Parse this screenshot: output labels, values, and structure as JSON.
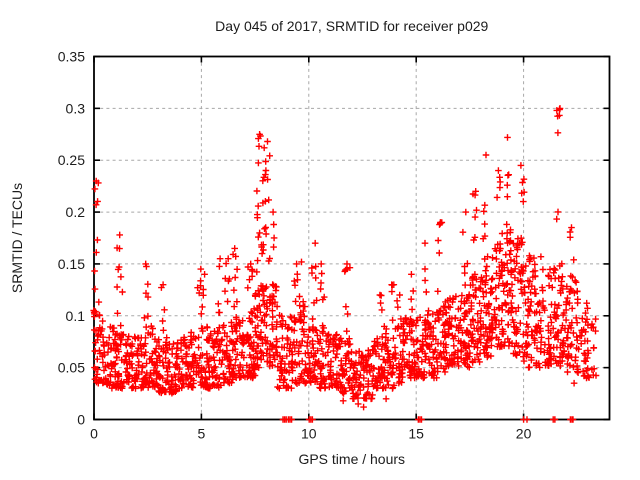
{
  "chart_data": {
    "type": "scatter",
    "title": "Day 045 of 2017, SRMTID for receiver p029",
    "xlabel": "GPS time / hours",
    "ylabel": "SRMTID / TECUs",
    "xlim": [
      0,
      24
    ],
    "ylim": [
      0,
      0.35
    ],
    "grid": true,
    "legend": "none",
    "marker": {
      "shape": "plus",
      "color": "#ff0000",
      "size": 7
    },
    "grid_color": "#a8a8a8",
    "border_color": "#000000",
    "xticks": [
      0,
      5,
      10,
      15,
      20
    ],
    "xtick_labels": [
      "0",
      "5",
      "10",
      "15",
      "20"
    ],
    "yticks": [
      0,
      0.05,
      0.1,
      0.15,
      0.2,
      0.25,
      0.3,
      0.35
    ],
    "ytick_labels": [
      "0",
      "0.05",
      "0.1",
      "0.15",
      "0.2",
      "0.25",
      "0.3",
      "0.35"
    ],
    "data_x_range": [
      0.05,
      23.3
    ],
    "data_y_max": 0.3,
    "bands": [
      [
        0.0,
        46,
        0.035,
        0.105
      ],
      [
        0.5,
        40,
        0.03,
        0.09
      ],
      [
        1.0,
        40,
        0.03,
        0.085
      ],
      [
        1.5,
        42,
        0.03,
        0.08
      ],
      [
        2.0,
        40,
        0.03,
        0.08
      ],
      [
        2.5,
        42,
        0.03,
        0.09
      ],
      [
        3.0,
        40,
        0.025,
        0.08
      ],
      [
        3.5,
        40,
        0.025,
        0.075
      ],
      [
        4.0,
        40,
        0.03,
        0.08
      ],
      [
        4.5,
        40,
        0.03,
        0.085
      ],
      [
        5.0,
        42,
        0.03,
        0.09
      ],
      [
        5.5,
        40,
        0.03,
        0.085
      ],
      [
        6.0,
        42,
        0.035,
        0.095
      ],
      [
        6.5,
        42,
        0.04,
        0.1
      ],
      [
        7.0,
        45,
        0.04,
        0.11
      ],
      [
        7.5,
        48,
        0.05,
        0.13
      ],
      [
        8.0,
        45,
        0.05,
        0.13
      ],
      [
        8.5,
        40,
        0.03,
        0.11
      ],
      [
        9.0,
        38,
        0.03,
        0.1
      ],
      [
        9.5,
        40,
        0.035,
        0.11
      ],
      [
        10.0,
        42,
        0.035,
        0.1
      ],
      [
        10.5,
        40,
        0.03,
        0.09
      ],
      [
        11.0,
        42,
        0.03,
        0.085
      ],
      [
        11.5,
        40,
        0.025,
        0.08
      ],
      [
        12.0,
        38,
        0.02,
        0.07
      ],
      [
        12.5,
        38,
        0.02,
        0.07
      ],
      [
        13.0,
        40,
        0.03,
        0.08
      ],
      [
        13.5,
        40,
        0.03,
        0.09
      ],
      [
        14.0,
        42,
        0.035,
        0.095
      ],
      [
        14.5,
        42,
        0.04,
        0.1
      ],
      [
        15.0,
        42,
        0.04,
        0.1
      ],
      [
        15.5,
        42,
        0.04,
        0.105
      ],
      [
        16.0,
        44,
        0.045,
        0.115
      ],
      [
        16.5,
        44,
        0.05,
        0.12
      ],
      [
        17.0,
        46,
        0.05,
        0.13
      ],
      [
        17.5,
        46,
        0.055,
        0.14
      ],
      [
        18.0,
        48,
        0.06,
        0.15
      ],
      [
        18.5,
        50,
        0.07,
        0.17
      ],
      [
        19.0,
        50,
        0.07,
        0.19
      ],
      [
        19.5,
        48,
        0.06,
        0.18
      ],
      [
        20.0,
        46,
        0.05,
        0.16
      ],
      [
        20.5,
        46,
        0.05,
        0.16
      ],
      [
        21.0,
        44,
        0.05,
        0.15
      ],
      [
        21.5,
        44,
        0.05,
        0.16
      ],
      [
        22.0,
        42,
        0.045,
        0.14
      ],
      [
        22.5,
        34,
        0.04,
        0.125
      ],
      [
        23.0,
        14,
        0.04,
        0.1
      ]
    ],
    "spikes": [
      [
        0.1,
        12,
        0.1,
        0.23
      ],
      [
        1.2,
        11,
        0.08,
        0.178
      ],
      [
        2.45,
        8,
        0.08,
        0.15
      ],
      [
        3.2,
        5,
        0.08,
        0.13
      ],
      [
        4.95,
        7,
        0.085,
        0.145
      ],
      [
        5.1,
        5,
        0.08,
        0.14
      ],
      [
        5.85,
        7,
        0.085,
        0.155
      ],
      [
        6.2,
        7,
        0.09,
        0.155
      ],
      [
        6.6,
        8,
        0.095,
        0.165
      ],
      [
        7.25,
        7,
        0.1,
        0.15
      ],
      [
        7.7,
        16,
        0.12,
        0.275
      ],
      [
        7.9,
        13,
        0.11,
        0.262
      ],
      [
        8.1,
        12,
        0.11,
        0.268
      ],
      [
        8.3,
        8,
        0.1,
        0.2
      ],
      [
        9.4,
        6,
        0.09,
        0.15
      ],
      [
        9.65,
        6,
        0.09,
        0.152
      ],
      [
        10.25,
        8,
        0.09,
        0.17
      ],
      [
        10.6,
        7,
        0.08,
        0.15
      ],
      [
        11.8,
        8,
        0.07,
        0.15
      ],
      [
        13.3,
        5,
        0.07,
        0.12
      ],
      [
        13.9,
        5,
        0.08,
        0.13
      ],
      [
        14.2,
        5,
        0.08,
        0.12
      ],
      [
        14.8,
        5,
        0.09,
        0.14
      ],
      [
        15.45,
        6,
        0.09,
        0.17
      ],
      [
        16.1,
        7,
        0.1,
        0.19
      ],
      [
        17.3,
        7,
        0.11,
        0.2
      ],
      [
        17.75,
        8,
        0.12,
        0.22
      ],
      [
        18.2,
        10,
        0.13,
        0.255
      ],
      [
        18.8,
        8,
        0.14,
        0.24
      ],
      [
        19.3,
        12,
        0.14,
        0.272
      ],
      [
        19.9,
        8,
        0.13,
        0.245
      ],
      [
        21.65,
        9,
        0.19,
        0.3
      ],
      [
        22.25,
        6,
        0.11,
        0.185
      ]
    ],
    "low_outliers": [
      [
        11.6,
        0.018
      ],
      [
        12.1,
        0.022
      ],
      [
        12.3,
        0.015
      ],
      [
        12.55,
        0.012
      ],
      [
        12.9,
        0.02
      ],
      [
        13.6,
        0.02
      ],
      [
        22.35,
        0.035
      ]
    ],
    "zero_markers": [
      {
        "x": 8.8,
        "w": 3
      },
      {
        "x": 9.05,
        "w": 3
      },
      {
        "x": 10.02,
        "w": 3
      },
      {
        "x": 15.1,
        "w": 3
      },
      {
        "x": 20.0,
        "w": 1
      },
      {
        "x": 20.16,
        "w": 1
      },
      {
        "x": 21.38,
        "w": 2
      },
      {
        "x": 21.46,
        "w": 1
      },
      {
        "x": 22.18,
        "w": 2
      },
      {
        "x": 22.3,
        "w": 1
      }
    ]
  }
}
